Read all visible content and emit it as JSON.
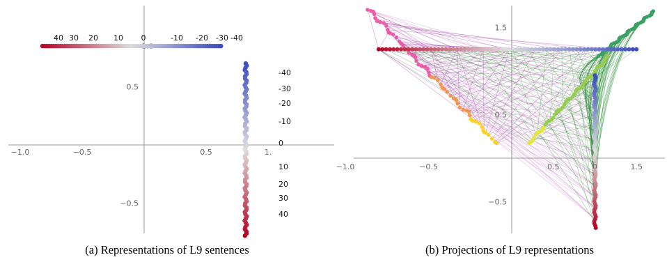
{
  "captions": {
    "a": "(a) Representations of L9 sentences",
    "b": "(b) Projections of L9 representations"
  },
  "chart_data": [
    {
      "type": "scatter",
      "title": "",
      "xlim": [
        -1.0,
        1.0
      ],
      "ylim": [
        -0.85,
        1.15
      ],
      "x_ticks": [
        "−1.0",
        "−0.5",
        "0.5",
        "1."
      ],
      "y_ticks": [
        "0.5",
        "−0.5"
      ],
      "grid": false,
      "colormap": {
        "low": "#3b4cc0",
        "mid": "#dddddd",
        "high": "#b40426"
      },
      "horizontal_series_labels": [
        "40",
        "30",
        "20",
        "10",
        "0",
        "-10",
        "-20",
        "-30",
        "-40"
      ],
      "vertical_series_labels": [
        "-40",
        "-30",
        "-20",
        "-10",
        "0",
        "10",
        "20",
        "30",
        "40"
      ],
      "horizontal_series": {
        "y": 0.85,
        "x_range": [
          -0.82,
          0.62
        ],
        "value_range": [
          40,
          -40
        ]
      },
      "vertical_series": {
        "x": 0.82,
        "y_range": [
          0.7,
          -0.78
        ],
        "value_range": [
          -40,
          40
        ]
      },
      "overlapping_tick": "1.0"
    },
    {
      "type": "scatter",
      "title": "",
      "xlim": [
        -1.85,
        1.85
      ],
      "ylim": [
        -0.85,
        1.95
      ],
      "x_ticks": [
        "−1.0",
        "−0.5",
        "0.5",
        "0",
        "1.5"
      ],
      "y_ticks": [
        "1.5",
        "0.5",
        "−0.5"
      ],
      "grid": false,
      "series": [
        {
          "name": "",
          "color": "#cc3399",
          "description": "magenta/pink projection arm"
        },
        {
          "name": "",
          "color": "#88cc33",
          "description": "yellow-green projection arm"
        },
        {
          "name": "",
          "color": "#2e8b57",
          "description": "green projection arm"
        }
      ],
      "horizontal_series": {
        "y": 1.25,
        "x_range": [
          -0.8,
          0.75
        ]
      },
      "vertical_series": {
        "x": 0.5,
        "y_range": [
          0.95,
          -0.8
        ]
      }
    }
  ]
}
